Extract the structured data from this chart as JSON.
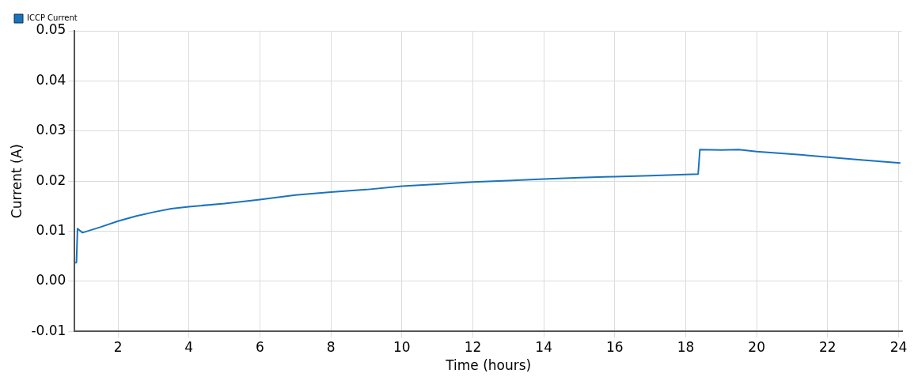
{
  "chart_data": {
    "type": "line",
    "xlabel": "Time (hours)",
    "ylabel": "Current (A)",
    "x": [
      0.8,
      0.83,
      0.86,
      1.0,
      1.5,
      2,
      2.5,
      3,
      3.5,
      4,
      5,
      6,
      7,
      8,
      9,
      10,
      11,
      12,
      13,
      14,
      15,
      16,
      17,
      18,
      18.35,
      18.4,
      19,
      19.5,
      20,
      21,
      22,
      23,
      24.05
    ],
    "series": [
      {
        "name": "ICCP Current",
        "color": "#1a73be",
        "values": [
          0.0036,
          0.0038,
          0.0105,
          0.0097,
          0.0108,
          0.012,
          0.013,
          0.0138,
          0.0145,
          0.0149,
          0.0155,
          0.0163,
          0.0172,
          0.0178,
          0.0183,
          0.019,
          0.0194,
          0.0198,
          0.0201,
          0.0204,
          0.0207,
          0.0209,
          0.0211,
          0.0213,
          0.0214,
          0.0263,
          0.0262,
          0.0263,
          0.0259,
          0.0254,
          0.0248,
          0.0242,
          0.0236
        ]
      }
    ],
    "xlim": [
      0.78,
      24.1
    ],
    "xticks": [
      2,
      4,
      6,
      8,
      10,
      12,
      14,
      16,
      18,
      20,
      22,
      24
    ],
    "ylim": [
      -0.01,
      0.05
    ],
    "yticks": [
      {
        "value": -0.01,
        "label": "-0.01"
      },
      {
        "value": 0,
        "label": "0.00"
      },
      {
        "value": 0.01,
        "label": "0.01"
      },
      {
        "value": 0.02,
        "label": "0.02"
      },
      {
        "value": 0.03,
        "label": "0.03"
      },
      {
        "value": 0.04,
        "label": "0.04"
      },
      {
        "value": 0.05,
        "label": "0.05"
      }
    ],
    "grid": true,
    "legend": "top left",
    "marker": "none",
    "line_style": "solid"
  }
}
